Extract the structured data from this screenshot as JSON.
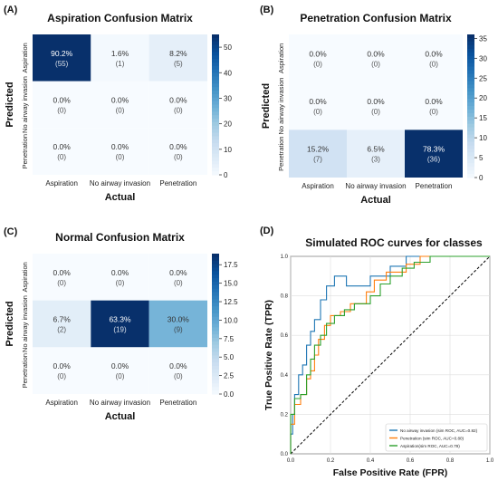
{
  "colors": {
    "heat_low": "#f7fbff",
    "heat_high": "#08306b",
    "text_dark": "#333333",
    "text_light": "#ffffff",
    "roc_blue": "#1f77b4",
    "roc_orange": "#ff7f0e",
    "roc_green": "#2ca02c",
    "diagonal": "#000000"
  },
  "chart_data": [
    {
      "type": "heatmap",
      "panel_label": "(A)",
      "title": "Aspiration Confusion Matrix",
      "xlabel": "Actual",
      "ylabel": "Predicted",
      "x_categories": [
        "Aspiration",
        "No airway invasion",
        "Penetration"
      ],
      "y_categories": [
        "Aspiration",
        "No airway invasion",
        "Penetration"
      ],
      "cells": [
        [
          {
            "pct": "90.2%",
            "count": "(55)",
            "value": 55
          },
          {
            "pct": "1.6%",
            "count": "(1)",
            "value": 1
          },
          {
            "pct": "8.2%",
            "count": "(5)",
            "value": 5
          }
        ],
        [
          {
            "pct": "0.0%",
            "count": "(0)",
            "value": 0
          },
          {
            "pct": "0.0%",
            "count": "(0)",
            "value": 0
          },
          {
            "pct": "0.0%",
            "count": "(0)",
            "value": 0
          }
        ],
        [
          {
            "pct": "0.0%",
            "count": "(0)",
            "value": 0
          },
          {
            "pct": "0.0%",
            "count": "(0)",
            "value": 0
          },
          {
            "pct": "0.0%",
            "count": "(0)",
            "value": 0
          }
        ]
      ],
      "colorbar_max": 55,
      "colorbar_ticks": [
        "0",
        "10",
        "20",
        "30",
        "40",
        "50"
      ]
    },
    {
      "type": "heatmap",
      "panel_label": "(B)",
      "title": "Penetration Confusion Matrix",
      "xlabel": "Actual",
      "ylabel": "Predicted",
      "x_categories": [
        "Aspiration",
        "No airway invasion",
        "Penetration"
      ],
      "y_categories": [
        "Aspiration",
        "No airway invasion",
        "Penetration"
      ],
      "cells": [
        [
          {
            "pct": "0.0%",
            "count": "(0)",
            "value": 0
          },
          {
            "pct": "0.0%",
            "count": "(0)",
            "value": 0
          },
          {
            "pct": "0.0%",
            "count": "(0)",
            "value": 0
          }
        ],
        [
          {
            "pct": "0.0%",
            "count": "(0)",
            "value": 0
          },
          {
            "pct": "0.0%",
            "count": "(0)",
            "value": 0
          },
          {
            "pct": "0.0%",
            "count": "(0)",
            "value": 0
          }
        ],
        [
          {
            "pct": "15.2%",
            "count": "(7)",
            "value": 7
          },
          {
            "pct": "6.5%",
            "count": "(3)",
            "value": 3
          },
          {
            "pct": "78.3%",
            "count": "(36)",
            "value": 36
          }
        ]
      ],
      "colorbar_max": 36,
      "colorbar_ticks": [
        "0",
        "5",
        "10",
        "15",
        "20",
        "25",
        "30",
        "35"
      ]
    },
    {
      "type": "heatmap",
      "panel_label": "(C)",
      "title": "Normal Confusion Matrix",
      "xlabel": "Actual",
      "ylabel": "Predicted",
      "x_categories": [
        "Aspiration",
        "No airway invasion",
        "Penetration"
      ],
      "y_categories": [
        "Aspiration",
        "No airway invasion",
        "Penetration"
      ],
      "cells": [
        [
          {
            "pct": "0.0%",
            "count": "(0)",
            "value": 0
          },
          {
            "pct": "0.0%",
            "count": "(0)",
            "value": 0
          },
          {
            "pct": "0.0%",
            "count": "(0)",
            "value": 0
          }
        ],
        [
          {
            "pct": "6.7%",
            "count": "(2)",
            "value": 2
          },
          {
            "pct": "63.3%",
            "count": "(19)",
            "value": 19
          },
          {
            "pct": "30.0%",
            "count": "(9)",
            "value": 9
          }
        ],
        [
          {
            "pct": "0.0%",
            "count": "(0)",
            "value": 0
          },
          {
            "pct": "0.0%",
            "count": "(0)",
            "value": 0
          },
          {
            "pct": "0.0%",
            "count": "(0)",
            "value": 0
          }
        ]
      ],
      "colorbar_max": 19,
      "colorbar_ticks": [
        "0.0",
        "2.5",
        "5.0",
        "7.5",
        "10.0",
        "12.5",
        "15.0",
        "17.5"
      ]
    },
    {
      "type": "line",
      "panel_label": "(D)",
      "title": "Simulated ROC curves for classes",
      "xlabel": "False Positive Rate (FPR)",
      "ylabel": "True Positive Rate (TPR)",
      "xlim": [
        0,
        1
      ],
      "ylim": [
        0,
        1
      ],
      "x_ticks": [
        "0.0",
        "0.2",
        "0.4",
        "0.6",
        "0.8",
        "1.0"
      ],
      "y_ticks": [
        "0.0",
        "0.2",
        "0.4",
        "0.6",
        "0.8",
        "1.0"
      ],
      "grid": true,
      "legend_position": "bottom-right",
      "series": [
        {
          "name": "No airway invasion (sim ROC, AUC=0.82)",
          "color": "#1f77b4",
          "points": [
            [
              0,
              0
            ],
            [
              0,
              0.1
            ],
            [
              0.01,
              0.1
            ],
            [
              0.01,
              0.2
            ],
            [
              0.02,
              0.2
            ],
            [
              0.02,
              0.3
            ],
            [
              0.04,
              0.3
            ],
            [
              0.04,
              0.4
            ],
            [
              0.06,
              0.4
            ],
            [
              0.06,
              0.45
            ],
            [
              0.08,
              0.45
            ],
            [
              0.08,
              0.55
            ],
            [
              0.1,
              0.55
            ],
            [
              0.1,
              0.62
            ],
            [
              0.12,
              0.62
            ],
            [
              0.12,
              0.68
            ],
            [
              0.15,
              0.68
            ],
            [
              0.15,
              0.78
            ],
            [
              0.18,
              0.78
            ],
            [
              0.18,
              0.85
            ],
            [
              0.2,
              0.85
            ],
            [
              0.22,
              0.85
            ],
            [
              0.22,
              0.9
            ],
            [
              0.28,
              0.9
            ],
            [
              0.28,
              0.85
            ],
            [
              0.4,
              0.85
            ],
            [
              0.4,
              0.9
            ],
            [
              0.5,
              0.9
            ],
            [
              0.5,
              0.95
            ],
            [
              0.58,
              0.95
            ],
            [
              0.58,
              1.0
            ],
            [
              1.0,
              1.0
            ]
          ]
        },
        {
          "name": "Penetration (sim ROC, AUC=0.80)",
          "color": "#ff7f0e",
          "points": [
            [
              0,
              0
            ],
            [
              0,
              0.15
            ],
            [
              0.02,
              0.15
            ],
            [
              0.02,
              0.25
            ],
            [
              0.05,
              0.25
            ],
            [
              0.05,
              0.3
            ],
            [
              0.08,
              0.3
            ],
            [
              0.08,
              0.38
            ],
            [
              0.1,
              0.38
            ],
            [
              0.1,
              0.42
            ],
            [
              0.12,
              0.42
            ],
            [
              0.12,
              0.5
            ],
            [
              0.14,
              0.5
            ],
            [
              0.14,
              0.58
            ],
            [
              0.17,
              0.58
            ],
            [
              0.17,
              0.65
            ],
            [
              0.2,
              0.65
            ],
            [
              0.2,
              0.7
            ],
            [
              0.25,
              0.7
            ],
            [
              0.25,
              0.72
            ],
            [
              0.3,
              0.72
            ],
            [
              0.3,
              0.76
            ],
            [
              0.38,
              0.76
            ],
            [
              0.38,
              0.82
            ],
            [
              0.42,
              0.82
            ],
            [
              0.42,
              0.88
            ],
            [
              0.48,
              0.88
            ],
            [
              0.48,
              0.92
            ],
            [
              0.58,
              0.92
            ],
            [
              0.58,
              0.96
            ],
            [
              0.65,
              0.96
            ],
            [
              0.65,
              1.0
            ],
            [
              1.0,
              1.0
            ]
          ]
        },
        {
          "name": "Aspiration(sim ROC, AUC=0.79)",
          "color": "#2ca02c",
          "points": [
            [
              0,
              0
            ],
            [
              0,
              0.2
            ],
            [
              0.02,
              0.2
            ],
            [
              0.02,
              0.28
            ],
            [
              0.05,
              0.28
            ],
            [
              0.05,
              0.3
            ],
            [
              0.08,
              0.3
            ],
            [
              0.08,
              0.4
            ],
            [
              0.1,
              0.4
            ],
            [
              0.1,
              0.48
            ],
            [
              0.12,
              0.48
            ],
            [
              0.12,
              0.55
            ],
            [
              0.15,
              0.55
            ],
            [
              0.15,
              0.6
            ],
            [
              0.18,
              0.6
            ],
            [
              0.18,
              0.66
            ],
            [
              0.22,
              0.66
            ],
            [
              0.22,
              0.7
            ],
            [
              0.27,
              0.7
            ],
            [
              0.27,
              0.73
            ],
            [
              0.32,
              0.73
            ],
            [
              0.32,
              0.76
            ],
            [
              0.4,
              0.76
            ],
            [
              0.4,
              0.8
            ],
            [
              0.45,
              0.8
            ],
            [
              0.45,
              0.86
            ],
            [
              0.5,
              0.86
            ],
            [
              0.5,
              0.9
            ],
            [
              0.56,
              0.9
            ],
            [
              0.56,
              0.94
            ],
            [
              0.62,
              0.94
            ],
            [
              0.62,
              0.97
            ],
            [
              0.7,
              0.97
            ],
            [
              0.7,
              1.0
            ],
            [
              1.0,
              1.0
            ]
          ]
        }
      ]
    }
  ]
}
